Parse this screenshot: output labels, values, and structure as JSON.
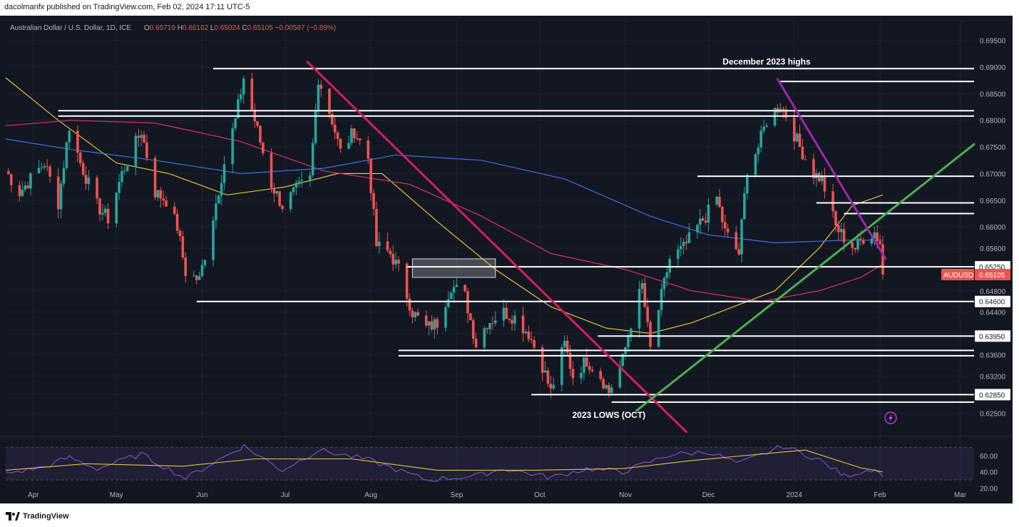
{
  "publisher_line": "dacolmanfx published on TradingView.com, Feb 02, 2024 17:11 UTC-5",
  "brand": "TradingView",
  "colors": {
    "background": "#131722",
    "grid": "#1f2330",
    "text": "#b2b5be",
    "up": "#26a69a",
    "down": "#ef5350",
    "sma50": "#e6c43a",
    "sma100": "#e0306a",
    "sma200": "#3f6fe8",
    "rsi": "#7e57c2",
    "rsi_signal": "#e6c43a",
    "downtrend_2023": "#d81b60",
    "uptrend": "#4caf50",
    "downtrend_2024": "#9c27b0"
  },
  "icons": [
    "lightning-icon",
    "tradingview-logo-icon"
  ],
  "chart_data": {
    "type": "candlestick",
    "symbol_label": "Australian Dollar / U.S. Dollar, 1D, ICE",
    "ohlc_header": [
      {
        "k": "O",
        "v": "0.65719"
      },
      {
        "k": "H",
        "v": "0.66102"
      },
      {
        "k": "L",
        "v": "0.65024"
      },
      {
        "k": "C",
        "v": "0.65105"
      },
      {
        "k": "",
        "v": "−0.00587 (−0.89%)"
      }
    ],
    "x_axis": {
      "start": "2023-03-22",
      "end": "2024-03-06",
      "labels": [
        {
          "date": "2023-04-01",
          "label": "Apr"
        },
        {
          "date": "2023-05-01",
          "label": "May"
        },
        {
          "date": "2023-06-01",
          "label": "Jun"
        },
        {
          "date": "2023-07-01",
          "label": "Jul"
        },
        {
          "date": "2023-08-01",
          "label": "Aug"
        },
        {
          "date": "2023-09-01",
          "label": "Sep"
        },
        {
          "date": "2023-10-01",
          "label": "Oct"
        },
        {
          "date": "2023-11-01",
          "label": "Nov"
        },
        {
          "date": "2023-12-01",
          "label": "Dec"
        },
        {
          "date": "2024-01-01",
          "label": "2024"
        },
        {
          "date": "2024-02-01",
          "label": "Feb"
        },
        {
          "date": "2024-03-01",
          "label": "Mar"
        }
      ]
    },
    "y_axis": {
      "range": [
        0.6224,
        0.6975
      ],
      "ticks": [
        "0.62500",
        "0.62850",
        "0.63200",
        "0.63600",
        "0.64000",
        "0.64400",
        "0.64800",
        "0.65600",
        "0.66000",
        "0.66500",
        "0.67000",
        "0.67500",
        "0.68000",
        "0.68500",
        "0.69000",
        "0.69500"
      ]
    },
    "highlighted_levels": [
      "0.65250",
      "0.64600",
      "0.63950",
      "0.62850"
    ],
    "price_tag": {
      "symbol": "AUDUSD",
      "value": "0.65105",
      "price": 0.65105
    },
    "close_path": [
      [
        "2023-03-22",
        0.6705
      ],
      [
        "2023-03-27",
        0.6665
      ],
      [
        "2023-03-31",
        0.669
      ],
      [
        "2023-04-05",
        0.672
      ],
      [
        "2023-04-10",
        0.6645
      ],
      [
        "2023-04-14",
        0.679
      ],
      [
        "2023-04-18",
        0.672
      ],
      [
        "2023-04-24",
        0.664
      ],
      [
        "2023-04-28",
        0.6615
      ],
      [
        "2023-05-03",
        0.67
      ],
      [
        "2023-05-10",
        0.678
      ],
      [
        "2023-05-15",
        0.6665
      ],
      [
        "2023-05-19",
        0.665
      ],
      [
        "2023-05-23",
        0.66
      ],
      [
        "2023-05-26",
        0.6515
      ],
      [
        "2023-05-31",
        0.65
      ],
      [
        "2023-06-05",
        0.662
      ],
      [
        "2023-06-09",
        0.672
      ],
      [
        "2023-06-13",
        0.68
      ],
      [
        "2023-06-16",
        0.688
      ],
      [
        "2023-06-21",
        0.678
      ],
      [
        "2023-06-26",
        0.668
      ],
      [
        "2023-06-30",
        0.664
      ],
      [
        "2023-07-05",
        0.667
      ],
      [
        "2023-07-10",
        0.669
      ],
      [
        "2023-07-13",
        0.688
      ],
      [
        "2023-07-18",
        0.68
      ],
      [
        "2023-07-21",
        0.674
      ],
      [
        "2023-07-26",
        0.678
      ],
      [
        "2023-07-31",
        0.673
      ],
      [
        "2023-08-03",
        0.6565
      ],
      [
        "2023-08-08",
        0.655
      ],
      [
        "2023-08-11",
        0.652
      ],
      [
        "2023-08-16",
        0.644
      ],
      [
        "2023-08-21",
        0.641
      ],
      [
        "2023-08-25",
        0.642
      ],
      [
        "2023-08-30",
        0.649
      ],
      [
        "2023-09-04",
        0.647
      ],
      [
        "2023-09-08",
        0.638
      ],
      [
        "2023-09-12",
        0.642
      ],
      [
        "2023-09-18",
        0.644
      ],
      [
        "2023-09-22",
        0.643
      ],
      [
        "2023-09-27",
        0.64
      ],
      [
        "2023-10-02",
        0.634
      ],
      [
        "2023-10-05",
        0.629
      ],
      [
        "2023-10-10",
        0.638
      ],
      [
        "2023-10-13",
        0.632
      ],
      [
        "2023-10-18",
        0.635
      ],
      [
        "2023-10-23",
        0.632
      ],
      [
        "2023-10-26",
        0.629
      ],
      [
        "2023-10-31",
        0.635
      ],
      [
        "2023-11-03",
        0.642
      ],
      [
        "2023-11-07",
        0.649
      ],
      [
        "2023-11-10",
        0.637
      ],
      [
        "2023-11-14",
        0.647
      ],
      [
        "2023-11-17",
        0.654
      ],
      [
        "2023-11-22",
        0.656
      ],
      [
        "2023-11-27",
        0.66
      ],
      [
        "2023-11-30",
        0.662
      ],
      [
        "2023-12-04",
        0.6655
      ],
      [
        "2023-12-07",
        0.659
      ],
      [
        "2023-12-12",
        0.655
      ],
      [
        "2023-12-15",
        0.671
      ],
      [
        "2023-12-19",
        0.675
      ],
      [
        "2023-12-22",
        0.68
      ],
      [
        "2023-12-27",
        0.683
      ],
      [
        "2023-12-29",
        0.681
      ],
      [
        "2024-01-03",
        0.675
      ],
      [
        "2024-01-08",
        0.67
      ],
      [
        "2024-01-11",
        0.669
      ],
      [
        "2024-01-16",
        0.66
      ],
      [
        "2024-01-19",
        0.658
      ],
      [
        "2024-01-23",
        0.656
      ],
      [
        "2024-01-26",
        0.658
      ],
      [
        "2024-01-30",
        0.659
      ],
      [
        "2024-02-01",
        0.657
      ],
      [
        "2024-02-02",
        0.65105
      ]
    ],
    "moving_averages": [
      {
        "id": "sma50",
        "points": [
          [
            "2023-03-22",
            0.688
          ],
          [
            "2023-04-10",
            0.68
          ],
          [
            "2023-05-01",
            0.672
          ],
          [
            "2023-05-20",
            0.67
          ],
          [
            "2023-06-10",
            0.666
          ],
          [
            "2023-07-01",
            0.6675
          ],
          [
            "2023-07-20",
            0.67
          ],
          [
            "2023-08-05",
            0.67
          ],
          [
            "2023-08-25",
            0.661
          ],
          [
            "2023-09-15",
            0.652
          ],
          [
            "2023-10-05",
            0.645
          ],
          [
            "2023-10-25",
            0.641
          ],
          [
            "2023-11-10",
            0.64
          ],
          [
            "2023-11-25",
            0.642
          ],
          [
            "2023-12-10",
            0.645
          ],
          [
            "2023-12-25",
            0.648
          ],
          [
            "2024-01-10",
            0.656
          ],
          [
            "2024-01-22",
            0.664
          ],
          [
            "2024-02-02",
            0.666
          ]
        ]
      },
      {
        "id": "sma100",
        "points": [
          [
            "2023-03-22",
            0.679
          ],
          [
            "2023-04-15",
            0.68
          ],
          [
            "2023-05-15",
            0.6795
          ],
          [
            "2023-06-15",
            0.676
          ],
          [
            "2023-07-15",
            0.6705
          ],
          [
            "2023-08-15",
            0.668
          ],
          [
            "2023-09-10",
            0.662
          ],
          [
            "2023-10-05",
            0.655
          ],
          [
            "2023-11-01",
            0.652
          ],
          [
            "2023-11-25",
            0.648
          ],
          [
            "2023-12-20",
            0.646
          ],
          [
            "2024-01-10",
            0.648
          ],
          [
            "2024-01-25",
            0.6505
          ],
          [
            "2024-02-02",
            0.653
          ]
        ]
      },
      {
        "id": "sma200",
        "points": [
          [
            "2023-03-22",
            0.6765
          ],
          [
            "2023-04-15",
            0.6745
          ],
          [
            "2023-05-15",
            0.6725
          ],
          [
            "2023-06-15",
            0.67
          ],
          [
            "2023-07-15",
            0.671
          ],
          [
            "2023-08-10",
            0.6735
          ],
          [
            "2023-09-10",
            0.6725
          ],
          [
            "2023-10-10",
            0.669
          ],
          [
            "2023-11-10",
            0.662
          ],
          [
            "2023-12-01",
            0.6585
          ],
          [
            "2023-12-25",
            0.657
          ],
          [
            "2024-01-20",
            0.6575
          ],
          [
            "2024-02-02",
            0.6575
          ]
        ]
      }
    ],
    "support_resistance": [
      {
        "price": 0.6897,
        "from": "2023-06-05",
        "to": "2024-03-06"
      },
      {
        "price": 0.6873,
        "from": "2023-12-27",
        "to": "2024-03-06"
      },
      {
        "price": 0.6818,
        "from": "2023-04-10",
        "to": "2024-03-06"
      },
      {
        "price": 0.6808,
        "from": "2023-04-10",
        "to": "2024-03-06"
      },
      {
        "price": 0.6695,
        "from": "2023-11-27",
        "to": "2024-03-06"
      },
      {
        "price": 0.6645,
        "from": "2024-01-09",
        "to": "2024-03-06"
      },
      {
        "price": 0.6625,
        "from": "2024-01-19",
        "to": "2024-03-06"
      },
      {
        "price": 0.6525,
        "from": "2023-08-14",
        "to": "2024-03-06"
      },
      {
        "price": 0.646,
        "from": "2023-05-30",
        "to": "2024-03-06"
      },
      {
        "price": 0.6395,
        "from": "2023-10-22",
        "to": "2024-03-06"
      },
      {
        "price": 0.6368,
        "from": "2023-08-11",
        "to": "2024-03-06"
      },
      {
        "price": 0.6358,
        "from": "2023-08-11",
        "to": "2024-03-06"
      },
      {
        "price": 0.6285,
        "from": "2023-09-28",
        "to": "2024-03-06"
      },
      {
        "price": 0.6271,
        "from": "2023-10-27",
        "to": "2024-03-06"
      }
    ],
    "zone": {
      "from": "2023-08-16",
      "to": "2023-09-15",
      "low": 0.6505,
      "high": 0.654
    },
    "trendlines": [
      {
        "id": "downtrend_2023",
        "from": [
          "2023-07-09",
          0.691
        ],
        "to": [
          "2023-11-23",
          0.6215
        ]
      },
      {
        "id": "uptrend",
        "from": [
          "2023-11-05",
          0.6255
        ],
        "to": [
          "2024-03-06",
          0.6755
        ]
      },
      {
        "id": "downtrend_2024",
        "from": [
          "2023-12-26",
          0.6877
        ],
        "to": [
          "2024-02-03",
          0.654
        ]
      }
    ],
    "annotations": [
      {
        "text": "December 2023 highs",
        "date": "2023-12-22",
        "price": 0.691
      },
      {
        "text": "2023 LOWS (OCT)",
        "date": "2023-10-26",
        "price": 0.6247
      }
    ],
    "rsi": {
      "axis_range": [
        15,
        75
      ],
      "ticks": [
        "60.00",
        "40.00",
        "20.00"
      ],
      "band": [
        30,
        70
      ],
      "points": [
        [
          "2023-03-22",
          38
        ],
        [
          "2023-04-05",
          46
        ],
        [
          "2023-04-14",
          58
        ],
        [
          "2023-04-24",
          44
        ],
        [
          "2023-05-10",
          62
        ],
        [
          "2023-05-26",
          32
        ],
        [
          "2023-06-16",
          72
        ],
        [
          "2023-06-30",
          42
        ],
        [
          "2023-07-13",
          67
        ],
        [
          "2023-07-31",
          55
        ],
        [
          "2023-08-21",
          30
        ],
        [
          "2023-09-08",
          35
        ],
        [
          "2023-09-18",
          44
        ],
        [
          "2023-10-05",
          33
        ],
        [
          "2023-10-18",
          44
        ],
        [
          "2023-10-31",
          40
        ],
        [
          "2023-11-17",
          61
        ],
        [
          "2023-12-01",
          65
        ],
        [
          "2023-12-12",
          50
        ],
        [
          "2023-12-28",
          72
        ],
        [
          "2024-01-10",
          55
        ],
        [
          "2024-01-19",
          35
        ],
        [
          "2024-01-30",
          44
        ],
        [
          "2024-02-02",
          34
        ]
      ],
      "signal_points": [
        [
          "2023-03-22",
          42
        ],
        [
          "2023-04-20",
          50
        ],
        [
          "2023-05-25",
          47
        ],
        [
          "2023-06-20",
          56
        ],
        [
          "2023-07-25",
          56
        ],
        [
          "2023-08-25",
          42
        ],
        [
          "2023-09-30",
          42
        ],
        [
          "2023-10-31",
          44
        ],
        [
          "2023-11-25",
          54
        ],
        [
          "2023-12-20",
          62
        ],
        [
          "2024-01-05",
          67
        ],
        [
          "2024-01-25",
          45
        ],
        [
          "2024-02-02",
          40
        ]
      ]
    }
  }
}
